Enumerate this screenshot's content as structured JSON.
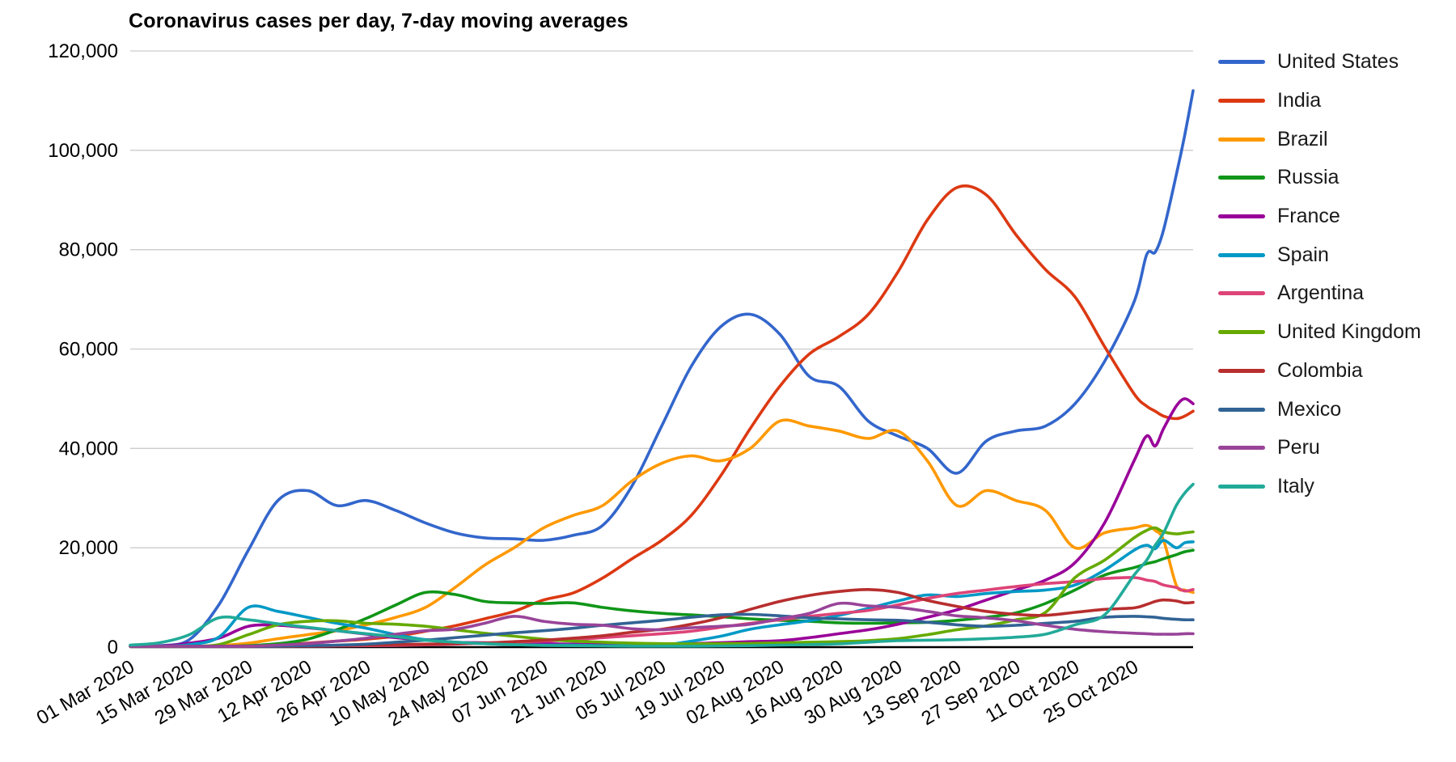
{
  "page": {
    "background_color": "#ffffff",
    "text_color": "#000000"
  },
  "chart_data": {
    "type": "line",
    "title": "Coronavirus cases per day, 7-day moving averages",
    "grid": true,
    "legend_position": "right",
    "gridline_color": "#cccccc",
    "axis_line_color": "#000000",
    "y_axis": {
      "min": 0,
      "max": 120000,
      "tick_step": 20000,
      "tick_values": [
        0,
        20000,
        40000,
        60000,
        80000,
        100000,
        120000
      ],
      "tick_labels": [
        "0",
        "20,000",
        "40,000",
        "60,000",
        "80,000",
        "100,000",
        "120,000"
      ]
    },
    "x_axis": {
      "label_rotation_deg": -30,
      "tick_days": [
        0,
        14,
        28,
        42,
        56,
        70,
        84,
        98,
        112,
        126,
        140,
        154,
        168,
        182,
        196,
        210,
        224,
        238
      ],
      "tick_labels": [
        "01 Mar 2020",
        "15 Mar 2020",
        "29 Mar 2020",
        "12 Apr 2020",
        "26 Apr 2020",
        "10 May 2020",
        "24 May 2020",
        "07 Jun 2020",
        "21 Jun 2020",
        "05 Jul 2020",
        "19 Jul 2020",
        "02 Aug 2020",
        "16 Aug 2020",
        "30 Aug 2020",
        "13 Sep 2020",
        "27 Sep 2020",
        "11 Oct 2020",
        "25 Oct 2020"
      ],
      "range_days": [
        0,
        252
      ]
    },
    "days": [
      0,
      7,
      14,
      21,
      28,
      35,
      42,
      49,
      56,
      63,
      70,
      77,
      84,
      91,
      98,
      105,
      112,
      119,
      126,
      133,
      140,
      147,
      154,
      161,
      168,
      175,
      182,
      189,
      196,
      203,
      210,
      217,
      224,
      231,
      238,
      241,
      243,
      245,
      248,
      250,
      252
    ],
    "series": [
      {
        "name": "United States",
        "color": "#3366CC",
        "values": [
          50,
          300,
          1500,
          8500,
          19500,
          29500,
          31500,
          28500,
          29500,
          27500,
          25000,
          23000,
          22000,
          21800,
          21500,
          22500,
          24500,
          32500,
          44500,
          56500,
          64500,
          67000,
          63000,
          54500,
          52500,
          45500,
          42500,
          40000,
          35000,
          41500,
          43500,
          44500,
          49000,
          57500,
          69500,
          79000,
          79500,
          84000,
          95000,
          103000,
          112000
        ]
      },
      {
        "name": "India",
        "color": "#DC3912",
        "values": [
          0,
          0,
          10,
          50,
          100,
          400,
          800,
          1200,
          1600,
          2200,
          3200,
          4300,
          5700,
          7200,
          9500,
          10900,
          13900,
          17800,
          21500,
          26500,
          34500,
          44000,
          52500,
          59000,
          62500,
          67000,
          75500,
          86000,
          92500,
          91000,
          83000,
          76000,
          70500,
          60500,
          51000,
          48500,
          47500,
          46500,
          46000,
          46500,
          47500
        ]
      },
      {
        "name": "Brazil",
        "color": "#FF9900",
        "values": [
          0,
          0,
          10,
          300,
          800,
          1700,
          2500,
          3300,
          4500,
          6000,
          8000,
          12000,
          16500,
          20000,
          24000,
          26500,
          28500,
          33500,
          37000,
          38500,
          37500,
          40000,
          45500,
          44500,
          43500,
          42000,
          43500,
          37500,
          28500,
          31500,
          29500,
          27500,
          20000,
          23000,
          24000,
          24500,
          23500,
          21500,
          12500,
          11500,
          11000
        ]
      },
      {
        "name": "Russia",
        "color": "#109618",
        "values": [
          0,
          0,
          10,
          100,
          300,
          700,
          1600,
          3500,
          5800,
          8500,
          11000,
          10600,
          9200,
          8900,
          8800,
          8900,
          8000,
          7300,
          6800,
          6500,
          6100,
          5700,
          5400,
          5200,
          4900,
          4800,
          4900,
          5000,
          5400,
          6000,
          6900,
          8800,
          11500,
          14500,
          16000,
          16800,
          17200,
          17800,
          18600,
          19200,
          19500
        ]
      },
      {
        "name": "France",
        "color": "#990099",
        "values": [
          0,
          200,
          800,
          1800,
          4200,
          4400,
          3900,
          3300,
          2600,
          1900,
          1500,
          1000,
          900,
          800,
          700,
          600,
          500,
          500,
          600,
          700,
          900,
          1100,
          1300,
          1900,
          2700,
          3500,
          4600,
          6000,
          7500,
          9500,
          11500,
          13500,
          17000,
          25000,
          37500,
          42500,
          40500,
          44000,
          48500,
          50000,
          49000
        ]
      },
      {
        "name": "Spain",
        "color": "#0099C6",
        "values": [
          0,
          100,
          500,
          2000,
          8000,
          7200,
          6000,
          4800,
          3800,
          2500,
          1500,
          1000,
          700,
          500,
          400,
          400,
          300,
          300,
          400,
          1200,
          2200,
          3600,
          4500,
          5300,
          6400,
          7800,
          9300,
          10500,
          10200,
          10800,
          11200,
          11500,
          12500,
          15500,
          19500,
          20500,
          19800,
          21500,
          20000,
          21000,
          21200
        ]
      },
      {
        "name": "Argentina",
        "color": "#DD4477",
        "values": [
          0,
          0,
          0,
          50,
          100,
          150,
          200,
          250,
          300,
          350,
          450,
          600,
          800,
          1000,
          1200,
          1500,
          1900,
          2300,
          2700,
          3200,
          4000,
          4800,
          5500,
          6200,
          6800,
          7400,
          8500,
          9800,
          10800,
          11500,
          12200,
          12800,
          13200,
          13800,
          14000,
          13500,
          13200,
          12500,
          12000,
          11300,
          11600
        ]
      },
      {
        "name": "United Kingdom",
        "color": "#66AA00",
        "values": [
          0,
          0,
          100,
          500,
          2500,
          4500,
          5200,
          5300,
          4800,
          4600,
          4200,
          3500,
          2800,
          2200,
          1600,
          1200,
          1000,
          800,
          700,
          650,
          700,
          750,
          850,
          1000,
          1100,
          1300,
          1700,
          2500,
          3500,
          4300,
          5500,
          7000,
          14000,
          17500,
          22000,
          23500,
          24000,
          23200,
          22800,
          23000,
          23200
        ]
      },
      {
        "name": "Colombia",
        "color": "#B82E2E",
        "values": [
          0,
          0,
          0,
          50,
          100,
          150,
          250,
          350,
          400,
          500,
          600,
          700,
          850,
          1100,
          1400,
          1800,
          2300,
          3000,
          3600,
          4600,
          5900,
          7600,
          9200,
          10400,
          11200,
          11600,
          11000,
          9400,
          8200,
          7200,
          6600,
          6400,
          7000,
          7600,
          7900,
          8600,
          9200,
          9500,
          9300,
          8900,
          9000
        ]
      },
      {
        "name": "Mexico",
        "color": "#316395",
        "values": [
          0,
          0,
          0,
          50,
          100,
          200,
          300,
          400,
          600,
          1000,
          1400,
          1900,
          2400,
          2900,
          3300,
          3800,
          4400,
          4900,
          5400,
          6000,
          6500,
          6600,
          6300,
          5900,
          5700,
          5500,
          5400,
          5000,
          4500,
          4200,
          4400,
          4800,
          5200,
          6000,
          6200,
          6100,
          6000,
          5800,
          5600,
          5500,
          5500
        ]
      },
      {
        "name": "Peru",
        "color": "#994499",
        "values": [
          0,
          0,
          0,
          100,
          200,
          400,
          700,
          1200,
          1800,
          2600,
          3300,
          3600,
          4800,
          6200,
          5200,
          4600,
          4400,
          3700,
          3500,
          3900,
          4200,
          4600,
          5700,
          6800,
          8800,
          8300,
          8000,
          7200,
          6300,
          5900,
          5300,
          4400,
          3600,
          3100,
          2800,
          2700,
          2600,
          2600,
          2600,
          2700,
          2700
        ]
      },
      {
        "name": "Italy",
        "color": "#22AA99",
        "values": [
          400,
          900,
          2500,
          5900,
          5500,
          4700,
          4000,
          3300,
          2700,
          2100,
          1400,
          1000,
          700,
          500,
          350,
          300,
          250,
          200,
          200,
          200,
          250,
          300,
          400,
          500,
          650,
          1000,
          1300,
          1400,
          1500,
          1700,
          2000,
          2600,
          4500,
          6500,
          14500,
          17500,
          20500,
          23000,
          28500,
          31000,
          32800
        ]
      }
    ]
  }
}
